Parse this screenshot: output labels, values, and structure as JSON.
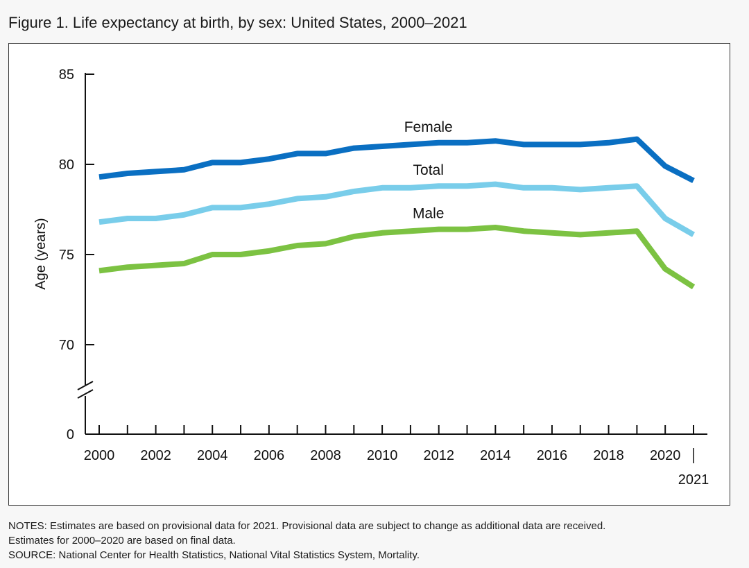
{
  "figure": {
    "title": "Figure 1. Life expectancy at birth, by sex: United States, 2000–2021"
  },
  "notes": {
    "line1": "NOTES: Estimates are based on provisional data for 2021. Provisional data are subject to change as additional data are received.",
    "line2": "Estimates for 2000–2020 are based on final data.",
    "source": "SOURCE: National Center for Health Statistics, National Vital Statistics System, Mortality."
  },
  "chart_data": {
    "type": "line",
    "title": "Figure 1. Life expectancy at birth, by sex: United States, 2000–2021",
    "xlabel": "",
    "ylabel": "Age (years)",
    "x": [
      2000,
      2001,
      2002,
      2003,
      2004,
      2005,
      2006,
      2007,
      2008,
      2009,
      2010,
      2011,
      2012,
      2013,
      2014,
      2015,
      2016,
      2017,
      2018,
      2019,
      2020,
      2021
    ],
    "x_tick_labels": [
      "2000",
      "2002",
      "2004",
      "2006",
      "2008",
      "2010",
      "2012",
      "2014",
      "2016",
      "2018",
      "2020",
      "2021"
    ],
    "y_ticks": [
      0,
      70,
      75,
      80,
      85
    ],
    "y_tick_labels": [
      "0",
      "70",
      "75",
      "80",
      "85"
    ],
    "ylim": [
      65,
      85
    ],
    "y_axis_break": true,
    "grid": false,
    "legend": "inline labels above lines",
    "series": [
      {
        "name": "Female",
        "color": "#0a6fc2",
        "values": [
          79.3,
          79.5,
          79.6,
          79.7,
          80.1,
          80.1,
          80.3,
          80.6,
          80.6,
          80.9,
          81.0,
          81.1,
          81.2,
          81.2,
          81.3,
          81.1,
          81.1,
          81.1,
          81.2,
          81.4,
          79.9,
          79.1
        ]
      },
      {
        "name": "Total",
        "color": "#79cdea",
        "values": [
          76.8,
          77.0,
          77.0,
          77.2,
          77.6,
          77.6,
          77.8,
          78.1,
          78.2,
          78.5,
          78.7,
          78.7,
          78.8,
          78.8,
          78.9,
          78.7,
          78.7,
          78.6,
          78.7,
          78.8,
          77.0,
          76.1
        ]
      },
      {
        "name": "Male",
        "color": "#7cc242",
        "values": [
          74.1,
          74.3,
          74.4,
          74.5,
          75.0,
          75.0,
          75.2,
          75.5,
          75.6,
          76.0,
          76.2,
          76.3,
          76.4,
          76.4,
          76.5,
          76.3,
          76.2,
          76.1,
          76.2,
          76.3,
          74.2,
          73.2
        ]
      }
    ]
  }
}
